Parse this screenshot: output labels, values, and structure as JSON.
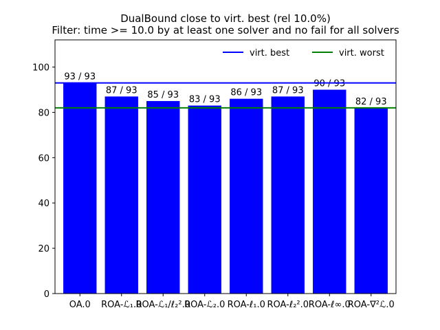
{
  "chart_data": {
    "type": "bar",
    "title": "DualBound close to virt. best (rel 10.0%)",
    "subtitle": "Filter: time >= 10.0 by at least one solver and no fail for all solvers",
    "categories": [
      "OA.0",
      "ROA-ℒ₁.0",
      "ROA-ℒ₁/ℓ₂².0",
      "ROA-ℒ₂.0",
      "ROA-ℓ₁.0",
      "ROA-ℓ₂².0",
      "ROA-ℓ∞.0",
      "ROA-∇²ℒ.0"
    ],
    "values": [
      93,
      87,
      85,
      83,
      86,
      87,
      90,
      82
    ],
    "bar_labels": [
      "93 / 93",
      "87 / 93",
      "85 / 93",
      "83 / 93",
      "86 / 93",
      "87 / 93",
      "90 / 93",
      "82 / 93"
    ],
    "bar_color": "#0000ff",
    "ylim": [
      0,
      112
    ],
    "yticks": [
      0,
      20,
      40,
      60,
      80,
      100
    ],
    "reference_lines": [
      {
        "name": "virt. best",
        "value": 93,
        "color": "#0000ff"
      },
      {
        "name": "virt. worst",
        "value": 82,
        "color": "#008000"
      }
    ],
    "legend_position": "top-right",
    "grid": false
  }
}
